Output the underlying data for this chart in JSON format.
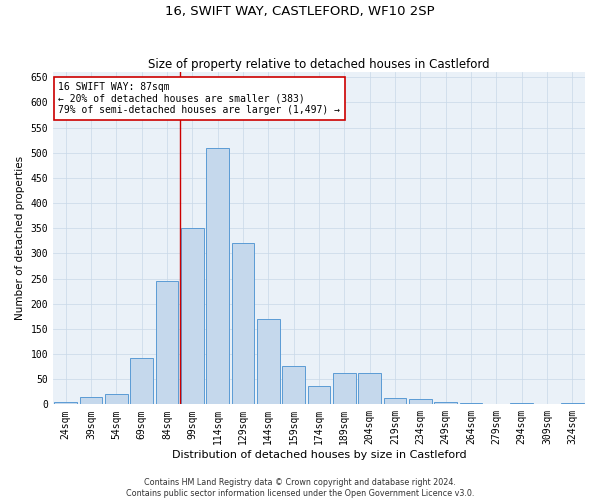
{
  "title": "16, SWIFT WAY, CASTLEFORD, WF10 2SP",
  "subtitle": "Size of property relative to detached houses in Castleford",
  "xlabel": "Distribution of detached houses by size in Castleford",
  "ylabel": "Number of detached properties",
  "categories": [
    "24sqm",
    "39sqm",
    "54sqm",
    "69sqm",
    "84sqm",
    "99sqm",
    "114sqm",
    "129sqm",
    "144sqm",
    "159sqm",
    "174sqm",
    "189sqm",
    "204sqm",
    "219sqm",
    "234sqm",
    "249sqm",
    "264sqm",
    "279sqm",
    "294sqm",
    "309sqm",
    "324sqm"
  ],
  "values": [
    5,
    15,
    20,
    92,
    245,
    350,
    510,
    320,
    170,
    77,
    36,
    63,
    63,
    13,
    11,
    4,
    2,
    0,
    2,
    0,
    3
  ],
  "bar_color": "#c5d8ec",
  "bar_edge_color": "#5b9bd5",
  "bar_width": 0.9,
  "vline_x": 4.5,
  "annotation_text": "16 SWIFT WAY: 87sqm\n← 20% of detached houses are smaller (383)\n79% of semi-detached houses are larger (1,497) →",
  "annotation_box_color": "#ffffff",
  "annotation_box_edge": "#cc0000",
  "vline_color": "#cc0000",
  "ylim": [
    0,
    660
  ],
  "yticks": [
    0,
    50,
    100,
    150,
    200,
    250,
    300,
    350,
    400,
    450,
    500,
    550,
    600,
    650
  ],
  "grid_color": "#c8d8e8",
  "background_color": "#eaf1f8",
  "footer_line1": "Contains HM Land Registry data © Crown copyright and database right 2024.",
  "footer_line2": "Contains public sector information licensed under the Open Government Licence v3.0.",
  "title_fontsize": 9.5,
  "subtitle_fontsize": 8.5,
  "xlabel_fontsize": 8,
  "ylabel_fontsize": 7.5,
  "tick_fontsize": 7,
  "annotation_fontsize": 7,
  "footer_fontsize": 5.8
}
